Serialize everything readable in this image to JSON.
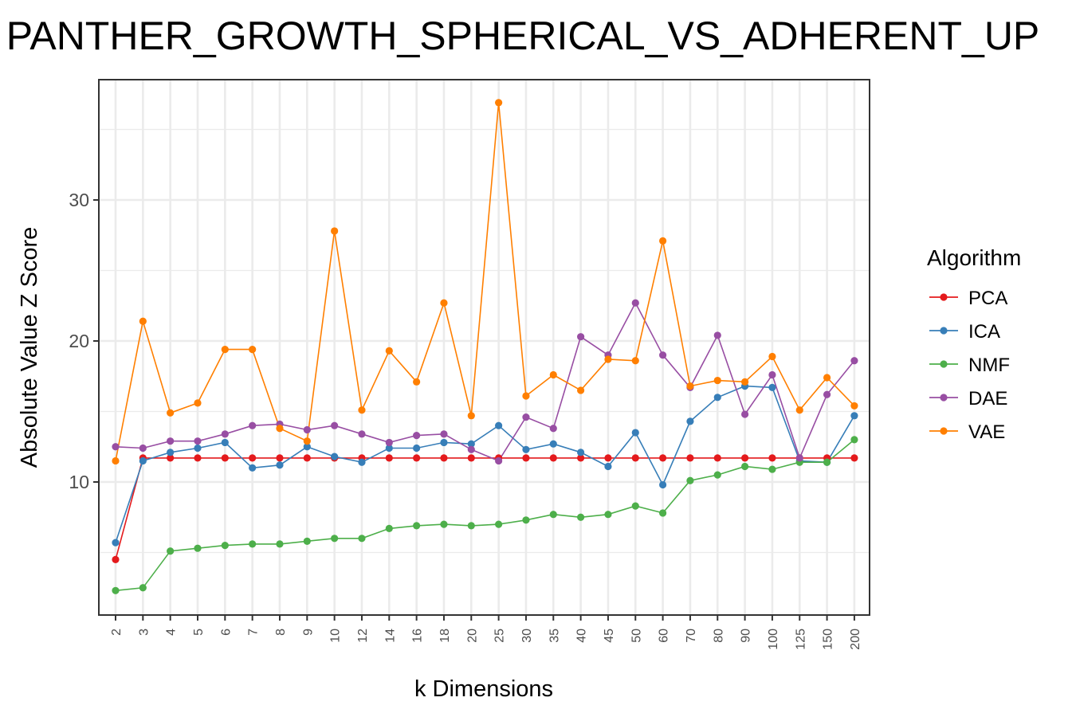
{
  "chart_data": {
    "type": "line",
    "title": "PANTHER_GROWTH_SPHERICAL_VS_ADHERENT_UP",
    "xlabel": "k Dimensions",
    "ylabel": "Absolute Value Z Score",
    "categories": [
      "2",
      "3",
      "4",
      "5",
      "6",
      "7",
      "8",
      "9",
      "10",
      "12",
      "14",
      "16",
      "18",
      "20",
      "25",
      "30",
      "35",
      "40",
      "45",
      "50",
      "60",
      "70",
      "80",
      "90",
      "100",
      "125",
      "150",
      "200"
    ],
    "ylim": [
      1.0,
      38.5
    ],
    "yticks": [
      10,
      20,
      30
    ],
    "grid": true,
    "legend": {
      "title": "Algorithm",
      "placement": "right"
    },
    "series": [
      {
        "name": "PCA",
        "color": "#e41a1c",
        "values": [
          4.5,
          11.7,
          11.7,
          11.7,
          11.7,
          11.7,
          11.7,
          11.7,
          11.7,
          11.7,
          11.7,
          11.7,
          11.7,
          11.7,
          11.7,
          11.7,
          11.7,
          11.7,
          11.7,
          11.7,
          11.7,
          11.7,
          11.7,
          11.7,
          11.7,
          11.7,
          11.7,
          11.7
        ]
      },
      {
        "name": "ICA",
        "color": "#377eb8",
        "values": [
          5.7,
          11.5,
          12.1,
          12.4,
          12.8,
          11.0,
          11.2,
          12.5,
          11.8,
          11.4,
          12.4,
          12.4,
          12.8,
          12.7,
          14.0,
          12.3,
          12.7,
          12.1,
          11.1,
          13.5,
          9.8,
          14.3,
          16.0,
          16.8,
          16.7,
          11.5,
          11.4,
          14.7
        ]
      },
      {
        "name": "NMF",
        "color": "#4daf4a",
        "values": [
          2.3,
          2.5,
          5.1,
          5.3,
          5.5,
          5.6,
          5.6,
          5.8,
          6.0,
          6.0,
          6.7,
          6.9,
          7.0,
          6.9,
          7.0,
          7.3,
          7.7,
          7.5,
          7.7,
          8.3,
          7.8,
          10.1,
          10.5,
          11.1,
          10.9,
          11.4,
          11.4,
          13.0
        ]
      },
      {
        "name": "DAE",
        "color": "#984ea3",
        "values": [
          12.5,
          12.4,
          12.9,
          12.9,
          13.4,
          14.0,
          14.1,
          13.7,
          14.0,
          13.4,
          12.8,
          13.3,
          13.4,
          12.3,
          11.5,
          14.6,
          13.8,
          20.3,
          19.0,
          22.7,
          19.0,
          16.7,
          20.4,
          14.8,
          17.6,
          11.7,
          16.2,
          18.6
        ]
      },
      {
        "name": "VAE",
        "color": "#ff7f00",
        "values": [
          11.5,
          21.4,
          14.9,
          15.6,
          19.4,
          19.4,
          13.8,
          12.9,
          27.8,
          15.1,
          19.3,
          17.1,
          22.7,
          14.7,
          36.9,
          16.1,
          17.6,
          16.5,
          18.7,
          18.6,
          27.1,
          16.8,
          17.2,
          17.1,
          18.9,
          15.1,
          17.4,
          15.4
        ]
      }
    ]
  }
}
